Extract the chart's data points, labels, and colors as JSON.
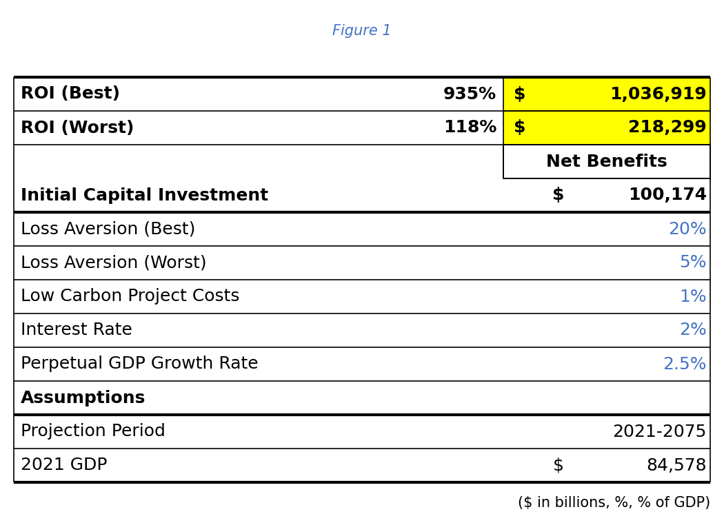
{
  "header_note": "($ in billions, %, % of GDP)",
  "rows": [
    {
      "label": "2021 GDP",
      "col_pct": "",
      "col_dollar": "$",
      "col_val": "84,578",
      "bold": false,
      "blue": false,
      "yellow": false,
      "thick_above": true,
      "net_benefits_header": false,
      "dollar_in_yellow": false
    },
    {
      "label": "Projection Period",
      "col_pct": "",
      "col_dollar": "",
      "col_val": "2021-2075",
      "bold": false,
      "blue": false,
      "yellow": false,
      "thick_above": false,
      "net_benefits_header": false,
      "dollar_in_yellow": false
    },
    {
      "label": "Assumptions",
      "col_pct": "",
      "col_dollar": "",
      "col_val": "",
      "bold": true,
      "blue": false,
      "yellow": false,
      "thick_above": true,
      "net_benefits_header": false,
      "dollar_in_yellow": false
    },
    {
      "label": "Perpetual GDP Growth Rate",
      "col_pct": "",
      "col_dollar": "",
      "col_val": "2.5%",
      "bold": false,
      "blue": true,
      "yellow": false,
      "thick_above": false,
      "net_benefits_header": false,
      "dollar_in_yellow": false
    },
    {
      "label": "Interest Rate",
      "col_pct": "",
      "col_dollar": "",
      "col_val": "2%",
      "bold": false,
      "blue": true,
      "yellow": false,
      "thick_above": false,
      "net_benefits_header": false,
      "dollar_in_yellow": false
    },
    {
      "label": "Low Carbon Project Costs",
      "col_pct": "",
      "col_dollar": "",
      "col_val": "1%",
      "bold": false,
      "blue": true,
      "yellow": false,
      "thick_above": false,
      "net_benefits_header": false,
      "dollar_in_yellow": false
    },
    {
      "label": "Loss Aversion (Worst)",
      "col_pct": "",
      "col_dollar": "",
      "col_val": "5%",
      "bold": false,
      "blue": true,
      "yellow": false,
      "thick_above": false,
      "net_benefits_header": false,
      "dollar_in_yellow": false
    },
    {
      "label": "Loss Aversion (Best)",
      "col_pct": "",
      "col_dollar": "",
      "col_val": "20%",
      "bold": false,
      "blue": true,
      "yellow": false,
      "thick_above": false,
      "net_benefits_header": false,
      "dollar_in_yellow": false
    },
    {
      "label": "Initial Capital Investment",
      "col_pct": "",
      "col_dollar": "$",
      "col_val": "100,174",
      "bold": true,
      "blue": false,
      "yellow": false,
      "thick_above": true,
      "net_benefits_header": false,
      "dollar_in_yellow": false
    },
    {
      "label": "",
      "col_pct": "",
      "col_dollar": "",
      "col_val": "Net Benefits",
      "bold": true,
      "blue": false,
      "yellow": false,
      "thick_above": false,
      "net_benefits_header": true,
      "dollar_in_yellow": false
    },
    {
      "label": "ROI (Worst)",
      "col_pct": "118%",
      "col_dollar": "$",
      "col_val": "218,299",
      "bold": true,
      "blue": false,
      "yellow": true,
      "thick_above": false,
      "net_benefits_header": false,
      "dollar_in_yellow": true
    },
    {
      "label": "ROI (Best)",
      "col_pct": "935%",
      "col_dollar": "$",
      "col_val": "1,036,919",
      "bold": true,
      "blue": false,
      "yellow": true,
      "thick_above": false,
      "net_benefits_header": false,
      "dollar_in_yellow": true
    }
  ],
  "figure_caption": "Figure 1",
  "bg_color": "#ffffff",
  "blue_color": "#4472C4",
  "yellow_color": "#FFFF00",
  "black_color": "#000000",
  "border_color": "#000000",
  "font_size": 18,
  "caption_font_size": 15,
  "header_note_font_size": 15
}
